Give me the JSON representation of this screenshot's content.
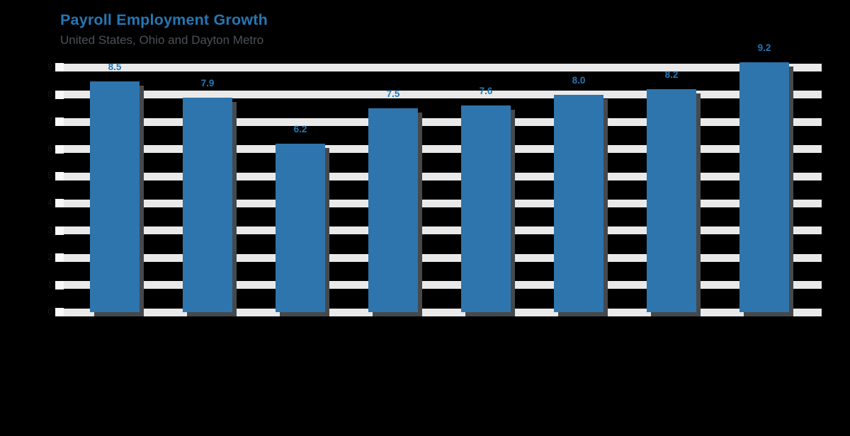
{
  "header": {
    "title": "Payroll Employment Growth",
    "subtitle": "United States, Ohio and Dayton Metro"
  },
  "chart_data": {
    "type": "bar",
    "title": "Payroll Employment Growth",
    "subtitle": "United States, Ohio and Dayton Metro",
    "values": [
      8.5,
      7.9,
      6.2,
      7.5,
      7.6,
      8.0,
      8.2,
      9.2
    ],
    "bar_labels": [
      "8.5",
      "7.9",
      "6.2",
      "7.5",
      "7.6",
      "8.0",
      "8.2",
      "9.2"
    ],
    "ytick_values": [
      0,
      1,
      2,
      3,
      4,
      5,
      6,
      7,
      8,
      9
    ],
    "ylim": [
      0,
      9
    ],
    "grid": true,
    "legend_position": "none",
    "colors": {
      "background": "#000000",
      "bar": "#2e74ad",
      "bar_shadow": "#46494c",
      "gridline": "#e9e9e9",
      "tick_mark": "#f8f8f8",
      "ytick_label": "#17191b",
      "title": "#2577b4",
      "subtitle": "#4d5257",
      "data_label": "#2577b4"
    }
  }
}
